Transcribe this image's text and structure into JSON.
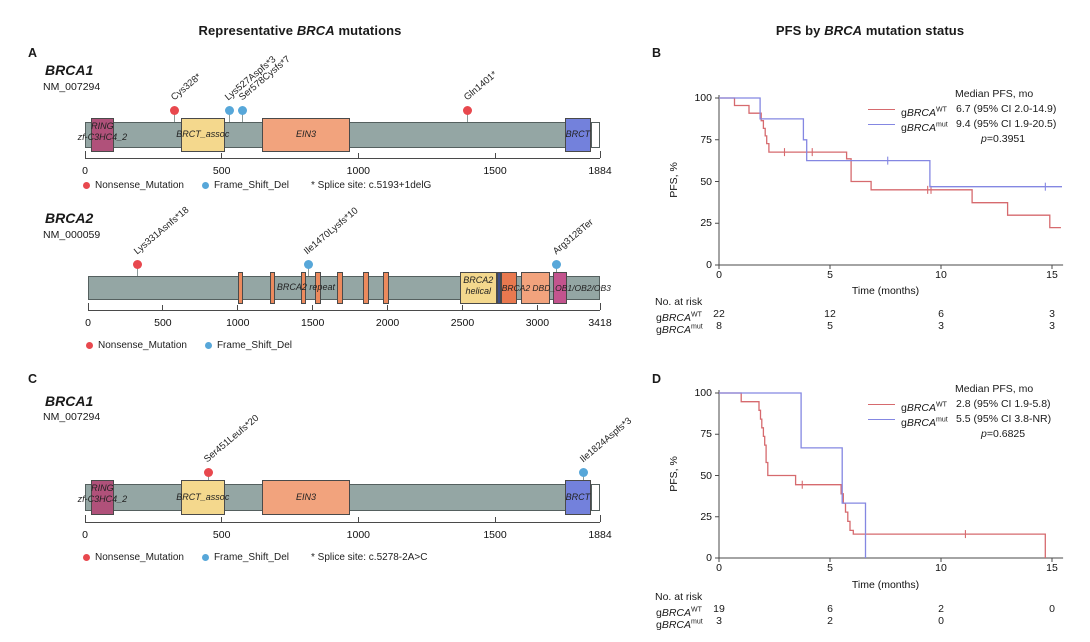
{
  "figure_titles": {
    "left": {
      "prefix": "Representative ",
      "gene": "BRCA",
      "suffix": " mutations"
    },
    "right": {
      "prefix": "PFS by ",
      "gene": "BRCA",
      "suffix": " mutation status"
    }
  },
  "panel_labels": {
    "a": "A",
    "b": "B",
    "c": "C",
    "d": "D"
  },
  "colors": {
    "nonsense_red": "#e8484e",
    "frameshift_blue": "#57a7d9",
    "km_wt_red": "#d66a6e",
    "km_mut_blue": "#8487e2",
    "backbone_gray": "#94a6a4",
    "domain_border": "#4a4a4a"
  },
  "chart_data": [
    {
      "type": "lollipop",
      "panel": "A",
      "gene": "BRCA1",
      "transcript": "NM_007294",
      "protein_length": 1884,
      "axis_ticks": [
        0,
        500,
        1000,
        1500,
        1884
      ],
      "domains": [
        {
          "name": "RING",
          "label": "RING",
          "label2": "zf-C3HC4_2",
          "start": 22,
          "end": 105,
          "color": "#b0517a"
        },
        {
          "name": "BRCT_assoc",
          "label": "BRCT_assoc",
          "start": 350,
          "end": 512,
          "color": "#f4d88d"
        },
        {
          "name": "EIN3",
          "label": "EIN3",
          "start": 648,
          "end": 969,
          "color": "#f2a37d"
        },
        {
          "name": "BRCT",
          "label": "BRCT",
          "start": 1756,
          "end": 1850,
          "color": "#7381dc"
        },
        {
          "name": "c-terminal-tail",
          "label": "",
          "start": 1852,
          "end": 1884,
          "color": "#ffffff",
          "flush": true
        }
      ],
      "mutations": [
        {
          "label": "Cys328*",
          "position": 328,
          "type": "Nonsense_Mutation"
        },
        {
          "label": "Lys527Aspfs*3",
          "position": 527,
          "type": "Frame_Shift_Del"
        },
        {
          "label": "Ser578Cysfs*7",
          "position": 578,
          "type": "Frame_Shift_Del"
        },
        {
          "label": "Gln1401*",
          "position": 1401,
          "type": "Nonsense_Mutation"
        }
      ],
      "legend_items": [
        {
          "label": "Nonsense_Mutation",
          "type": "Nonsense_Mutation"
        },
        {
          "label": "Frame_Shift_Del",
          "type": "Frame_Shift_Del"
        }
      ],
      "note": "* Splice site: c.5193+1delG"
    },
    {
      "type": "lollipop",
      "panel": "A",
      "gene": "BRCA2",
      "transcript": "NM_000059",
      "protein_length": 3418,
      "axis_ticks": [
        0,
        500,
        1000,
        1500,
        2000,
        2500,
        3000,
        3418
      ],
      "repeat_bars": [
        1002,
        1212,
        1421,
        1517,
        1664,
        1837,
        1971
      ],
      "repeat_bar_width": 36,
      "repeat_bar_color": "#ec8a5d",
      "repeat_label": {
        "text": "BRCA2 repeat",
        "position": 1455
      },
      "overlay_label": {
        "text": "BRCA2 DBD_OB1/OB2/OB3",
        "position": 2762
      },
      "domains": [
        {
          "name": "BRCA2-helical",
          "label": "BRCA2",
          "label2": "helical",
          "start": 2481,
          "end": 2730,
          "color": "#f4d88d"
        },
        {
          "name": "divider",
          "label": "",
          "start": 2730,
          "end": 2756,
          "color": "#3c4d88"
        },
        {
          "name": "OB1-block",
          "label": "",
          "start": 2756,
          "end": 2862,
          "color": "#e9794f"
        },
        {
          "name": "BRCA2-DBD-OB1",
          "label": "",
          "start": 2890,
          "end": 3082,
          "color": "#f2a37d"
        },
        {
          "name": "OB2-OB3",
          "label": "",
          "start": 3104,
          "end": 3196,
          "color": "#c3548e"
        }
      ],
      "mutations": [
        {
          "label": "Lys331Asnfs*18",
          "position": 331,
          "type": "Nonsense_Mutation"
        },
        {
          "label": "Ile1470Lysfs*10",
          "position": 1470,
          "type": "Frame_Shift_Del"
        },
        {
          "label": "Arg3128Ter",
          "position": 3128,
          "type": "Frame_Shift_Del"
        }
      ],
      "legend_items": [
        {
          "label": "Nonsense_Mutation",
          "type": "Nonsense_Mutation"
        },
        {
          "label": "Frame_Shift_Del",
          "type": "Frame_Shift_Del"
        }
      ],
      "note": ""
    },
    {
      "type": "km",
      "panel": "B",
      "ylabel": "PFS, %",
      "xlabel": "Time (months)",
      "yticks": [
        0,
        25,
        50,
        75,
        100
      ],
      "xticks": [
        0,
        5,
        10,
        15
      ],
      "xmax": 15.5,
      "legend": {
        "header": "Median PFS, mo",
        "rows": [
          {
            "group_prefix": "g",
            "group_gene": "BRCA",
            "group_sup": "WT",
            "value": "6.7 (95% CI 2.0-14.9)",
            "series": "wt"
          },
          {
            "group_prefix": "g",
            "group_gene": "BRCA",
            "group_sup": "mut",
            "value": "9.4 (95% CI 1.9-20.5)",
            "series": "mut"
          }
        ],
        "p_italic": "p",
        "p_rest": "=0.3951"
      },
      "series": [
        {
          "id": "wt",
          "color_key": "km_wt_red",
          "steps": [
            [
              0.7,
              95.5
            ],
            [
              1.35,
              90.9
            ],
            [
              1.9,
              86.4
            ],
            [
              2.0,
              81.8
            ],
            [
              2.08,
              77.3
            ],
            [
              2.15,
              72.7
            ],
            [
              2.25,
              67.6
            ],
            [
              5.75,
              63.6
            ],
            [
              5.95,
              50
            ],
            [
              6.85,
              45
            ],
            [
              11.4,
              37.3
            ],
            [
              13.0,
              29.8
            ],
            [
              14.9,
              22.4
            ]
          ],
          "end": 15.4,
          "censors": [
            [
              2.95,
              67.6
            ],
            [
              4.2,
              67.6
            ],
            [
              9.4,
              45
            ],
            [
              9.55,
              45
            ]
          ]
        },
        {
          "id": "mut",
          "color_key": "km_mut_blue",
          "steps": [
            [
              1.85,
              87.5
            ],
            [
              3.8,
              75
            ],
            [
              3.95,
              62.5
            ],
            [
              9.5,
              46.9
            ]
          ],
          "end": 15.45,
          "censors": [
            [
              7.6,
              62.5
            ],
            [
              14.7,
              46.9
            ]
          ]
        }
      ],
      "at_risk": {
        "header": "No. at risk",
        "rows": [
          {
            "group_prefix": "g",
            "group_gene": "BRCA",
            "group_sup": "WT",
            "counts": [
              "22",
              "12",
              "6",
              "3"
            ]
          },
          {
            "group_prefix": "g",
            "group_gene": "BRCA",
            "group_sup": "mut",
            "counts": [
              "8",
              "5",
              "3",
              "3"
            ]
          }
        ]
      }
    },
    {
      "type": "lollipop",
      "panel": "C",
      "gene": "BRCA1",
      "transcript": "NM_007294",
      "protein_length": 1884,
      "axis_ticks": [
        0,
        500,
        1000,
        1500,
        1884
      ],
      "domains": [
        {
          "name": "RING",
          "label": "RING",
          "label2": "zf-C3HC4_2",
          "start": 22,
          "end": 105,
          "color": "#b0517a"
        },
        {
          "name": "BRCT_assoc",
          "label": "BRCT_assoc",
          "start": 350,
          "end": 512,
          "color": "#f4d88d"
        },
        {
          "name": "EIN3",
          "label": "EIN3",
          "start": 648,
          "end": 969,
          "color": "#f2a37d"
        },
        {
          "name": "BRCT",
          "label": "BRCT",
          "start": 1756,
          "end": 1850,
          "color": "#7381dc"
        },
        {
          "name": "c-terminal-tail",
          "label": "",
          "start": 1852,
          "end": 1884,
          "color": "#ffffff",
          "flush": true
        }
      ],
      "mutations": [
        {
          "label": "Ser451Leufs*20",
          "position": 451,
          "type": "Nonsense_Mutation"
        },
        {
          "label": "Ile1824Aspfs*3",
          "position": 1824,
          "type": "Frame_Shift_Del"
        }
      ],
      "legend_items": [
        {
          "label": "Nonsense_Mutation",
          "type": "Nonsense_Mutation"
        },
        {
          "label": "Frame_Shift_Del",
          "type": "Frame_Shift_Del"
        }
      ],
      "note": "* Splice site: c.5278-2A>C"
    },
    {
      "type": "km",
      "panel": "D",
      "ylabel": "PFS, %",
      "xlabel": "Time (months)",
      "yticks": [
        0,
        25,
        50,
        75,
        100
      ],
      "xticks": [
        0,
        5,
        10,
        15
      ],
      "xmax": 15.5,
      "legend": {
        "header": "Median PFS, mo",
        "rows": [
          {
            "group_prefix": "g",
            "group_gene": "BRCA",
            "group_sup": "WT",
            "value": "2.8 (95% CI 1.9-5.8)",
            "series": "wt"
          },
          {
            "group_prefix": "g",
            "group_gene": "BRCA",
            "group_sup": "mut",
            "value": "5.5 (95% CI 3.8-NR)",
            "series": "mut"
          }
        ],
        "p_italic": "p",
        "p_rest": "=0.6825"
      },
      "series": [
        {
          "id": "wt",
          "color_key": "km_wt_red",
          "steps": [
            [
              1.0,
              94.7
            ],
            [
              1.8,
              89.5
            ],
            [
              1.87,
              84.2
            ],
            [
              1.93,
              78.9
            ],
            [
              2.0,
              73.7
            ],
            [
              2.06,
              68.4
            ],
            [
              2.12,
              57.9
            ],
            [
              2.2,
              50
            ],
            [
              3.45,
              44.4
            ],
            [
              5.5,
              38.9
            ],
            [
              5.6,
              33.3
            ],
            [
              5.7,
              27.8
            ],
            [
              5.8,
              22.2
            ],
            [
              5.9,
              16.7
            ],
            [
              6.05,
              14.5
            ],
            [
              14.7,
              0
            ]
          ],
          "end": 14.7,
          "censors": [
            [
              3.75,
              44.4
            ],
            [
              11.1,
              14.5
            ]
          ]
        },
        {
          "id": "mut",
          "color_key": "km_mut_blue",
          "steps": [
            [
              3.7,
              66.7
            ],
            [
              5.55,
              33.3
            ],
            [
              6.6,
              0
            ]
          ],
          "end": 6.6,
          "censors": []
        }
      ],
      "at_risk": {
        "header": "No. at risk",
        "rows": [
          {
            "group_prefix": "g",
            "group_gene": "BRCA",
            "group_sup": "WT",
            "counts": [
              "19",
              "6",
              "2",
              "0"
            ]
          },
          {
            "group_prefix": "g",
            "group_gene": "BRCA",
            "group_sup": "mut",
            "counts": [
              "3",
              "2",
              "0"
            ]
          }
        ]
      }
    }
  ]
}
